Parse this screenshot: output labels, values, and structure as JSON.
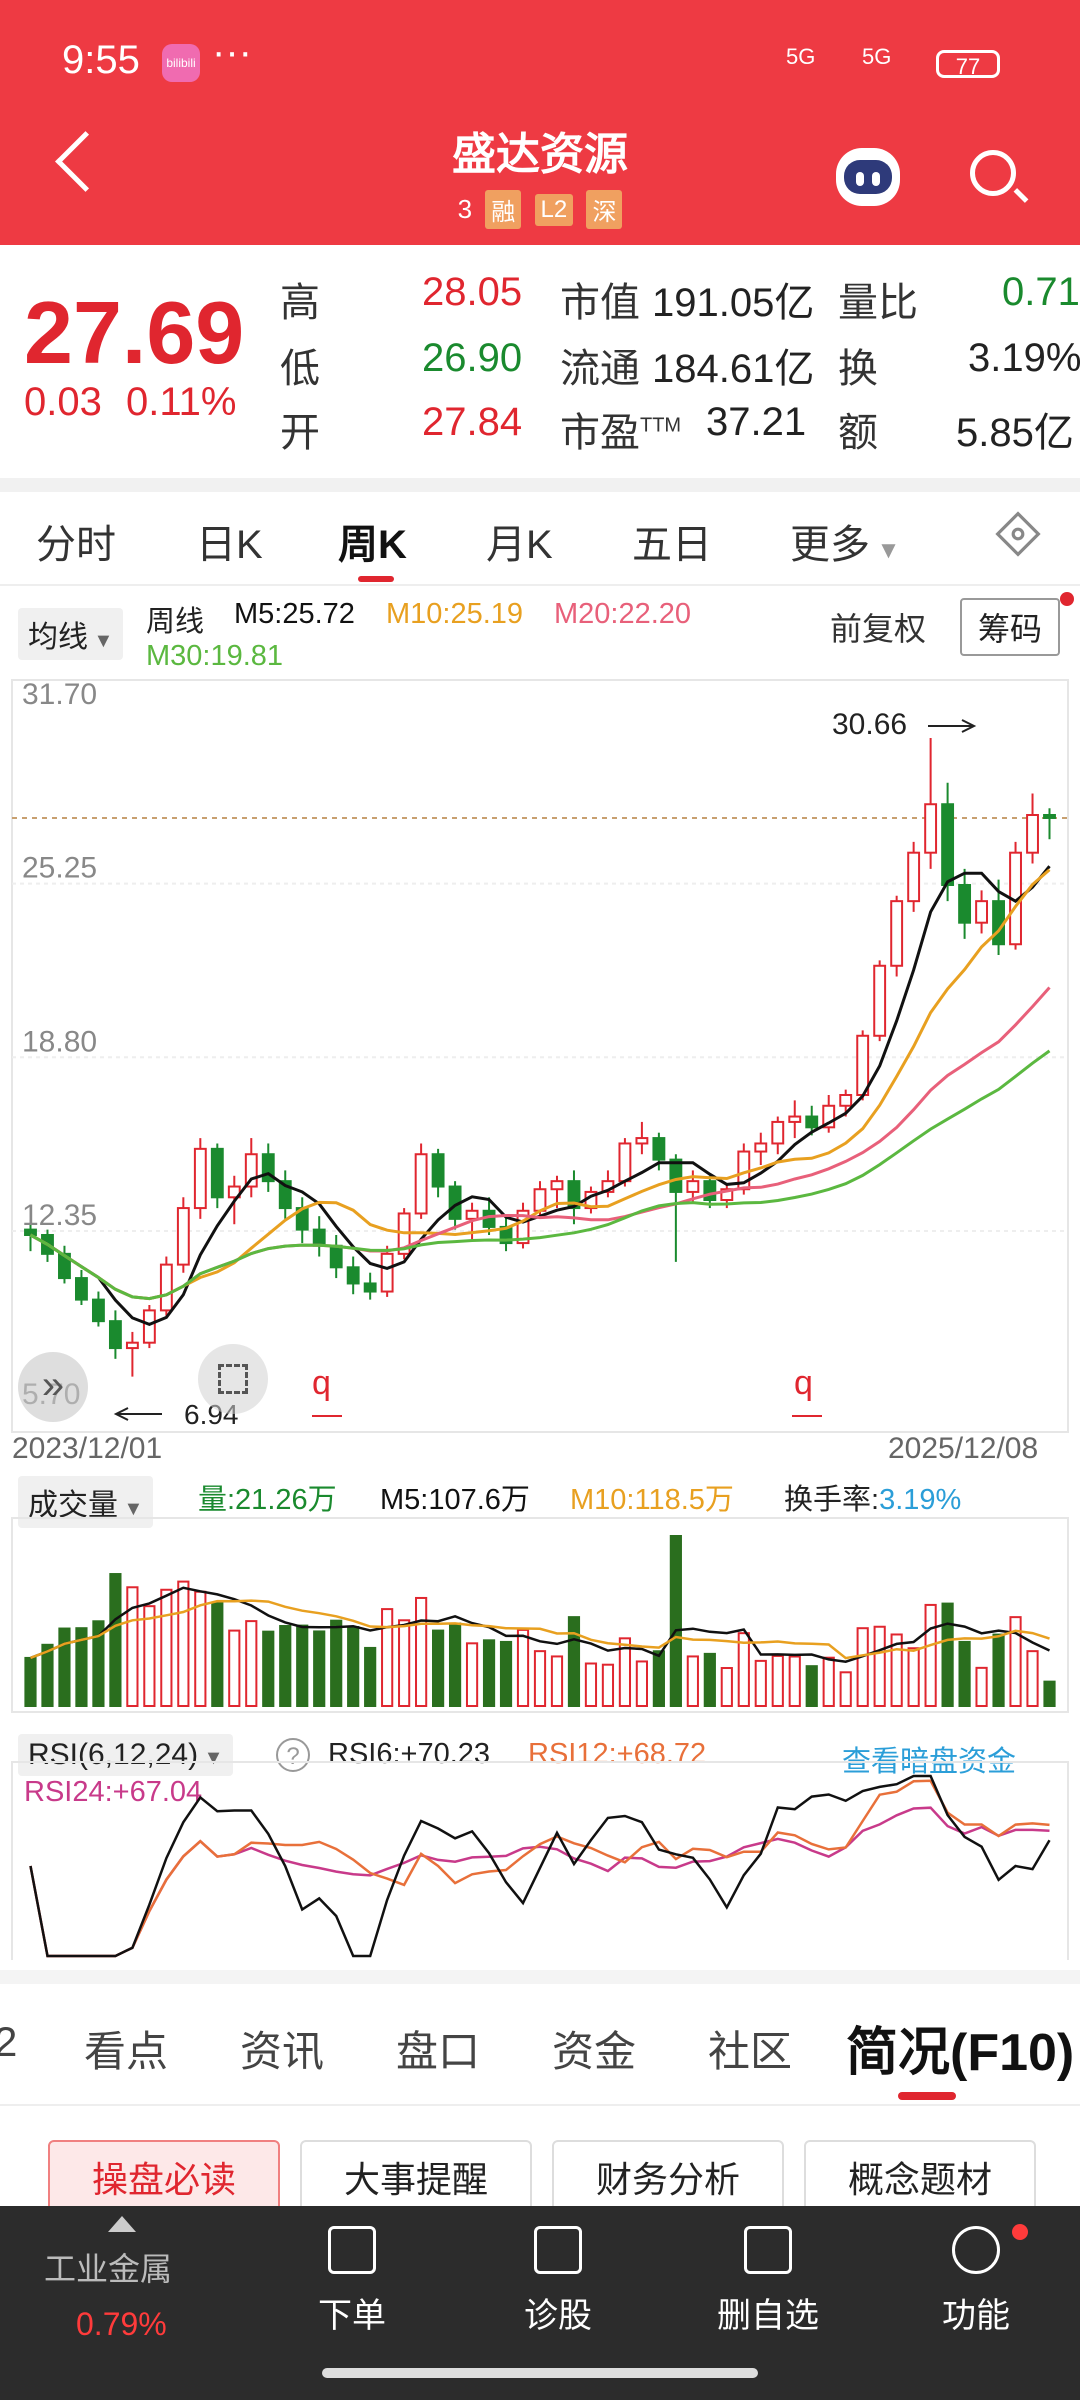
{
  "status_bar": {
    "time": "9:55",
    "dots": "···",
    "app_badge": "bilibili",
    "signal1": "5G",
    "signal2": "5G",
    "battery": "77"
  },
  "header": {
    "title": "盛达资源",
    "code_partial": "3",
    "tags": [
      "融",
      "L2",
      "深"
    ]
  },
  "quote": {
    "price": "27.69",
    "change": "0.03",
    "change_pct": "0.11%",
    "high_label": "高",
    "high": "28.05",
    "low_label": "低",
    "low": "26.90",
    "open_label": "开",
    "open": "27.84",
    "mktcap_label": "市值",
    "mktcap": "191.05亿",
    "float_label": "流通",
    "float": "184.61亿",
    "pe_label": "市盈",
    "pe_sup": "TTM",
    "pe": "37.21",
    "volratio_label": "量比",
    "volratio": "0.71",
    "turnover_label": "换",
    "turnover": "3.19%",
    "amount_label": "额",
    "amount": "5.85亿"
  },
  "period_tabs": [
    "分时",
    "日K",
    "周K",
    "月K",
    "五日",
    "更多"
  ],
  "ma_legend": {
    "button": "均线",
    "period": "周线",
    "m5": "M5:25.72",
    "m10": "M10:25.19",
    "m20": "M20:22.20",
    "m30": "M30:19.81",
    "adjust": "前复权",
    "chips": "筹码"
  },
  "colors": {
    "red": "#e0262f",
    "green": "#1a8a2e",
    "m5": "#111111",
    "m10": "#e8a020",
    "m20": "#e8607a",
    "m30": "#5bb840",
    "header": "#ee3a43"
  },
  "chart_data": {
    "type": "candlestick",
    "y_axis_ticks": [
      "31.70",
      "25.25",
      "18.80",
      "12.35",
      "5.70"
    ],
    "ylim": [
      5.7,
      31.7
    ],
    "max_label": "30.66",
    "min_label": "6.94",
    "date_start": "2023/12/01",
    "date_end": "2025/12/08",
    "marker_label": "q",
    "candles": [
      [
        12.4,
        12.6,
        11.6,
        12.2
      ],
      [
        12.2,
        12.4,
        11.2,
        11.5
      ],
      [
        11.5,
        11.8,
        10.4,
        10.6
      ],
      [
        10.6,
        10.9,
        9.6,
        9.8
      ],
      [
        9.8,
        10.1,
        8.8,
        9.0
      ],
      [
        9.0,
        9.4,
        7.6,
        8.0
      ],
      [
        8.0,
        8.6,
        6.94,
        8.2
      ],
      [
        8.2,
        9.6,
        8.0,
        9.4
      ],
      [
        9.4,
        11.4,
        9.2,
        11.1
      ],
      [
        11.1,
        13.6,
        10.8,
        13.2
      ],
      [
        13.2,
        15.8,
        12.8,
        15.4
      ],
      [
        15.4,
        15.6,
        13.2,
        13.6
      ],
      [
        13.6,
        14.4,
        12.6,
        14.0
      ],
      [
        14.0,
        15.8,
        13.6,
        15.2
      ],
      [
        15.2,
        15.6,
        13.8,
        14.2
      ],
      [
        14.2,
        14.6,
        12.8,
        13.2
      ],
      [
        13.2,
        13.6,
        11.9,
        12.4
      ],
      [
        12.4,
        12.9,
        11.4,
        11.8
      ],
      [
        11.8,
        12.2,
        10.6,
        11.0
      ],
      [
        11.0,
        11.4,
        10.0,
        10.4
      ],
      [
        10.4,
        10.8,
        9.8,
        10.1
      ],
      [
        10.1,
        11.8,
        9.9,
        11.5
      ],
      [
        11.5,
        13.2,
        11.3,
        13.0
      ],
      [
        13.0,
        15.6,
        12.8,
        15.2
      ],
      [
        15.2,
        15.4,
        13.6,
        14.0
      ],
      [
        14.0,
        14.2,
        12.4,
        12.8
      ],
      [
        12.8,
        13.4,
        12.0,
        13.1
      ],
      [
        13.1,
        13.6,
        12.2,
        12.5
      ],
      [
        12.5,
        12.9,
        11.6,
        11.9
      ],
      [
        11.9,
        13.4,
        11.7,
        13.1
      ],
      [
        13.1,
        14.2,
        12.9,
        13.9
      ],
      [
        13.9,
        14.4,
        13.2,
        14.2
      ],
      [
        14.2,
        14.6,
        12.6,
        13.2
      ],
      [
        13.2,
        14.0,
        13.0,
        13.8
      ],
      [
        13.8,
        14.6,
        13.6,
        14.2
      ],
      [
        14.2,
        15.8,
        14.0,
        15.6
      ],
      [
        15.6,
        16.4,
        15.2,
        15.8
      ],
      [
        15.8,
        16.0,
        14.6,
        15.0
      ],
      [
        15.0,
        15.2,
        11.2,
        13.8
      ],
      [
        13.8,
        14.6,
        13.4,
        14.2
      ],
      [
        14.2,
        14.4,
        13.2,
        13.5
      ],
      [
        13.5,
        14.1,
        13.2,
        13.9
      ],
      [
        13.9,
        15.6,
        13.7,
        15.3
      ],
      [
        15.3,
        16.0,
        14.8,
        15.6
      ],
      [
        15.6,
        16.6,
        15.2,
        16.4
      ],
      [
        16.4,
        17.2,
        15.8,
        16.6
      ],
      [
        16.6,
        17.0,
        15.9,
        16.2
      ],
      [
        16.2,
        17.4,
        16.0,
        17.0
      ],
      [
        17.0,
        17.6,
        16.6,
        17.4
      ],
      [
        17.4,
        19.8,
        17.2,
        19.6
      ],
      [
        19.6,
        22.4,
        19.4,
        22.2
      ],
      [
        22.2,
        24.8,
        21.8,
        24.6
      ],
      [
        24.6,
        26.8,
        24.2,
        26.4
      ],
      [
        26.4,
        30.66,
        25.8,
        28.2
      ],
      [
        28.2,
        29.0,
        24.6,
        25.2
      ],
      [
        25.2,
        25.8,
        23.2,
        23.8
      ],
      [
        23.8,
        25.0,
        23.4,
        24.6
      ],
      [
        24.6,
        25.4,
        22.6,
        23.0
      ],
      [
        23.0,
        26.8,
        22.8,
        26.4
      ],
      [
        26.4,
        28.6,
        26.0,
        27.8
      ],
      [
        27.8,
        28.05,
        26.9,
        27.69
      ]
    ],
    "volume_legend": {
      "button": "成交量",
      "vol": "量:21.26万",
      "m5": "M5:107.6万",
      "m10": "M10:118.5万",
      "turnover": "换手率:",
      "turnover_val": "3.19%"
    },
    "rsi_legend": {
      "button": "RSI(6,12,24)",
      "rsi6": "RSI6:+70.23",
      "rsi12": "RSI12:+68.72",
      "rsi24": "RSI24:+67.04",
      "link": "查看暗盘资金"
    }
  },
  "bottom_tabs": [
    "2",
    "看点",
    "资讯",
    "盘口",
    "资金",
    "社区",
    "简况(F10)"
  ],
  "sub_tabs": [
    "操盘必读",
    "大事提醒",
    "财务分析",
    "概念题材"
  ],
  "bottom_nav": {
    "sector": "工业金属",
    "sector_pct": "0.79%",
    "items": [
      "下单",
      "诊股",
      "删自选",
      "功能"
    ]
  }
}
